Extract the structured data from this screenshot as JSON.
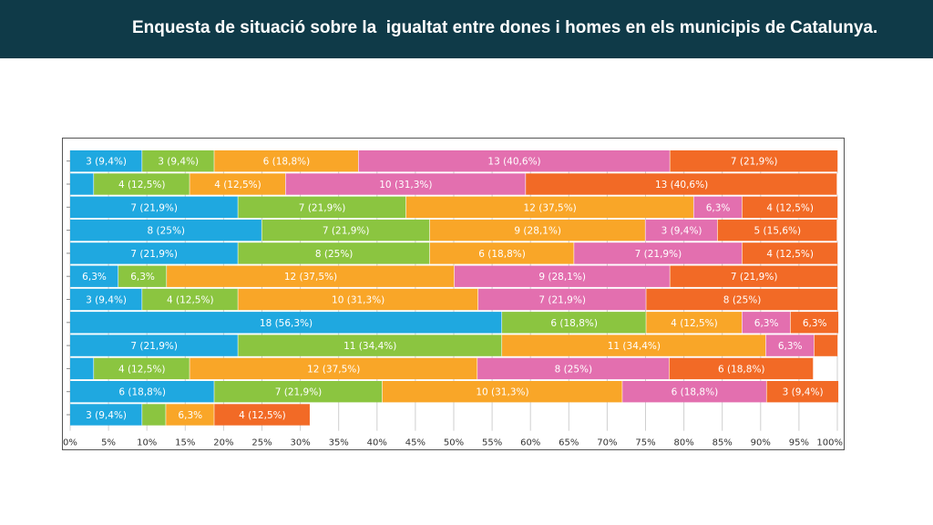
{
  "header": {
    "title": "Enquesta de situació sobre la  igualtat entre dones i homes en els municipis de Catalunya."
  },
  "chart_data": {
    "type": "bar",
    "orientation": "horizontal",
    "stacked": true,
    "title": "",
    "xlabel": "",
    "ylabel": "",
    "xlim": [
      0,
      100
    ],
    "x_ticks": [
      "0%",
      "5%",
      "10%",
      "15%",
      "20%",
      "25%",
      "30%",
      "35%",
      "40%",
      "45%",
      "50%",
      "55%",
      "60%",
      "65%",
      "70%",
      "75%",
      "80%",
      "85%",
      "90%",
      "95%",
      "100%"
    ],
    "grid": true,
    "legend": "none",
    "colors": [
      "#1fa8e0",
      "#8bc540",
      "#f9a628",
      "#e36faf",
      "#f26a26"
    ],
    "rows": [
      [
        {
          "c": 0,
          "v": 9.4,
          "label": "3 (9,4%)"
        },
        {
          "c": 1,
          "v": 9.4,
          "label": "3 (9,4%)"
        },
        {
          "c": 2,
          "v": 18.8,
          "label": "6 (18,8%)"
        },
        {
          "c": 3,
          "v": 40.6,
          "label": "13 (40,6%)"
        },
        {
          "c": 4,
          "v": 21.9,
          "label": "7 (21,9%)"
        }
      ],
      [
        {
          "c": 0,
          "v": 3.1,
          "label": ""
        },
        {
          "c": 1,
          "v": 12.5,
          "label": "4 (12,5%)"
        },
        {
          "c": 2,
          "v": 12.5,
          "label": "4 (12,5%)"
        },
        {
          "c": 3,
          "v": 31.3,
          "label": "10 (31,3%)"
        },
        {
          "c": 4,
          "v": 40.6,
          "label": "13 (40,6%)"
        }
      ],
      [
        {
          "c": 0,
          "v": 21.9,
          "label": "7 (21,9%)"
        },
        {
          "c": 1,
          "v": 21.9,
          "label": "7 (21,9%)"
        },
        {
          "c": 2,
          "v": 37.5,
          "label": "12 (37,5%)"
        },
        {
          "c": 3,
          "v": 6.3,
          "label": "6,3%"
        },
        {
          "c": 4,
          "v": 12.5,
          "label": "4 (12,5%)"
        }
      ],
      [
        {
          "c": 0,
          "v": 25,
          "label": "8 (25%)"
        },
        {
          "c": 1,
          "v": 21.9,
          "label": "7 (21,9%)"
        },
        {
          "c": 2,
          "v": 28.1,
          "label": "9 (28,1%)"
        },
        {
          "c": 3,
          "v": 9.4,
          "label": "3 (9,4%)"
        },
        {
          "c": 4,
          "v": 15.6,
          "label": "5 (15,6%)"
        }
      ],
      [
        {
          "c": 0,
          "v": 21.9,
          "label": "7 (21,9%)"
        },
        {
          "c": 1,
          "v": 25,
          "label": "8 (25%)"
        },
        {
          "c": 2,
          "v": 18.8,
          "label": "6 (18,8%)"
        },
        {
          "c": 3,
          "v": 21.9,
          "label": "7 (21,9%)"
        },
        {
          "c": 4,
          "v": 12.5,
          "label": "4 (12,5%)"
        }
      ],
      [
        {
          "c": 0,
          "v": 6.3,
          "label": "6,3%"
        },
        {
          "c": 1,
          "v": 6.3,
          "label": "6,3%"
        },
        {
          "c": 2,
          "v": 37.5,
          "label": "12 (37,5%)"
        },
        {
          "c": 3,
          "v": 28.1,
          "label": "9 (28,1%)"
        },
        {
          "c": 4,
          "v": 21.9,
          "label": "7 (21,9%)"
        }
      ],
      [
        {
          "c": 0,
          "v": 9.4,
          "label": "3 (9,4%)"
        },
        {
          "c": 1,
          "v": 12.5,
          "label": "4 (12,5%)"
        },
        {
          "c": 2,
          "v": 31.3,
          "label": "10 (31,3%)"
        },
        {
          "c": 3,
          "v": 21.9,
          "label": "7 (21,9%)"
        },
        {
          "c": 4,
          "v": 25,
          "label": "8 (25%)"
        }
      ],
      [
        {
          "c": 0,
          "v": 56.3,
          "label": "18 (56,3%)"
        },
        {
          "c": 1,
          "v": 18.8,
          "label": "6 (18,8%)"
        },
        {
          "c": 2,
          "v": 12.5,
          "label": "4 (12,5%)"
        },
        {
          "c": 3,
          "v": 6.3,
          "label": "6,3%"
        },
        {
          "c": 4,
          "v": 6.3,
          "label": "6,3%"
        }
      ],
      [
        {
          "c": 0,
          "v": 21.9,
          "label": "7 (21,9%)"
        },
        {
          "c": 1,
          "v": 34.4,
          "label": "11 (34,4%)"
        },
        {
          "c": 2,
          "v": 34.4,
          "label": "11 (34,4%)"
        },
        {
          "c": 3,
          "v": 6.3,
          "label": "6,3%"
        },
        {
          "c": 4,
          "v": 3.1,
          "label": ""
        }
      ],
      [
        {
          "c": 0,
          "v": 3.1,
          "label": ""
        },
        {
          "c": 1,
          "v": 12.5,
          "label": "4 (12,5%)"
        },
        {
          "c": 2,
          "v": 37.5,
          "label": "12 (37,5%)"
        },
        {
          "c": 3,
          "v": 25,
          "label": "8 (25%)"
        },
        {
          "c": 4,
          "v": 18.8,
          "label": "6 (18,8%)"
        }
      ],
      [
        {
          "c": 0,
          "v": 18.8,
          "label": "6 (18,8%)"
        },
        {
          "c": 1,
          "v": 21.9,
          "label": "7 (21,9%)"
        },
        {
          "c": 2,
          "v": 31.3,
          "label": "10 (31,3%)"
        },
        {
          "c": 3,
          "v": 18.8,
          "label": "6 (18,8%)"
        },
        {
          "c": 4,
          "v": 9.4,
          "label": "3 (9,4%)"
        }
      ],
      [
        {
          "c": 0,
          "v": 9.4,
          "label": "3 (9,4%)"
        },
        {
          "c": 1,
          "v": 3.1,
          "label": ""
        },
        {
          "c": 2,
          "v": 6.3,
          "label": "6,3%"
        },
        {
          "c": 4,
          "v": 12.5,
          "label": "4 (12,5%)"
        }
      ]
    ]
  }
}
